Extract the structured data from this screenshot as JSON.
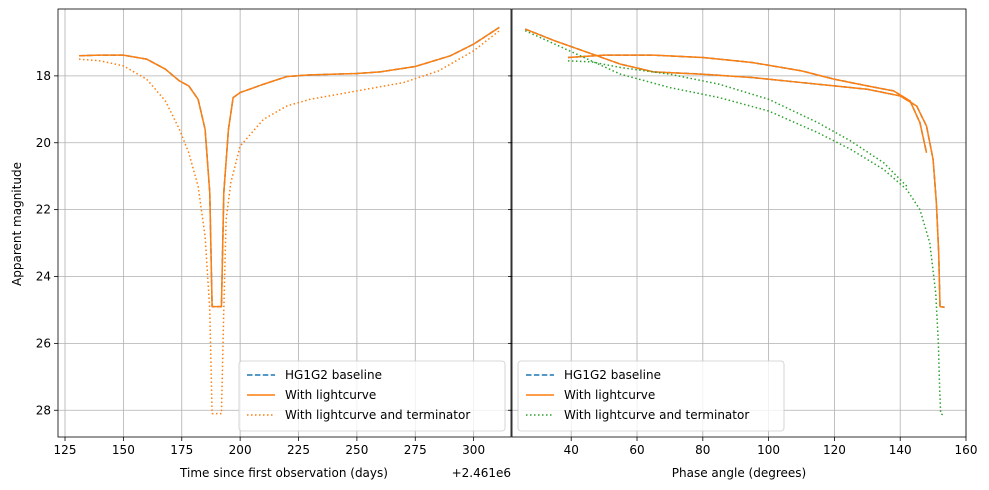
{
  "chart_data": [
    {
      "type": "line",
      "xlabel": "Time since first observation (days)",
      "ylabel": "Apparent magnitude",
      "offset_text": "+2.461e6",
      "xlim": [
        122,
        316
      ],
      "ylim": [
        28.8,
        16.0
      ],
      "x_ticks": [
        125,
        150,
        175,
        200,
        225,
        250,
        275,
        300
      ],
      "y_ticks": [
        18,
        20,
        22,
        24,
        26,
        28
      ],
      "grid": true,
      "legend_position": "lower-right",
      "series": [
        {
          "name": "HG1G2 baseline",
          "color": "#1f77b4",
          "style": "dashed",
          "points": [
            [
              131,
              17.4
            ],
            [
              140,
              17.38
            ],
            [
              150,
              17.38
            ],
            [
              160,
              17.5
            ],
            [
              168,
              17.8
            ],
            [
              174,
              18.15
            ],
            [
              178,
              18.3
            ],
            [
              182,
              18.7
            ],
            [
              185,
              19.6
            ],
            [
              187,
              21.5
            ],
            [
              188,
              24.9
            ],
            [
              192,
              24.9
            ],
            [
              193,
              21.5
            ],
            [
              195,
              19.6
            ],
            [
              197,
              18.65
            ],
            [
              200,
              18.5
            ],
            [
              210,
              18.25
            ],
            [
              220,
              18.02
            ],
            [
              230,
              17.97
            ],
            [
              250,
              17.93
            ],
            [
              260,
              17.88
            ],
            [
              275,
              17.72
            ],
            [
              290,
              17.4
            ],
            [
              300,
              17.05
            ],
            [
              311,
              16.55
            ]
          ]
        },
        {
          "name": "With lightcurve",
          "color": "#ff7f0e",
          "style": "solid",
          "points": [
            [
              131,
              17.4
            ],
            [
              140,
              17.38
            ],
            [
              150,
              17.38
            ],
            [
              160,
              17.5
            ],
            [
              168,
              17.8
            ],
            [
              174,
              18.15
            ],
            [
              178,
              18.3
            ],
            [
              182,
              18.7
            ],
            [
              185,
              19.6
            ],
            [
              187,
              21.5
            ],
            [
              188,
              24.9
            ],
            [
              192,
              24.9
            ],
            [
              193,
              21.5
            ],
            [
              195,
              19.6
            ],
            [
              197,
              18.65
            ],
            [
              200,
              18.5
            ],
            [
              210,
              18.25
            ],
            [
              220,
              18.02
            ],
            [
              230,
              17.97
            ],
            [
              250,
              17.93
            ],
            [
              260,
              17.88
            ],
            [
              275,
              17.72
            ],
            [
              290,
              17.4
            ],
            [
              300,
              17.05
            ],
            [
              311,
              16.55
            ]
          ]
        },
        {
          "name": "With lightcurve and terminator",
          "color": "#ff7f0e",
          "style": "dotted",
          "points": [
            [
              131,
              17.5
            ],
            [
              140,
              17.55
            ],
            [
              150,
              17.7
            ],
            [
              160,
              18.1
            ],
            [
              168,
              18.75
            ],
            [
              174,
              19.6
            ],
            [
              178,
              20.3
            ],
            [
              182,
              21.3
            ],
            [
              185,
              22.8
            ],
            [
              187,
              25.0
            ],
            [
              188,
              28.1
            ],
            [
              192,
              28.1
            ],
            [
              193,
              25.0
            ],
            [
              194,
              22.3
            ],
            [
              196,
              21.2
            ],
            [
              200,
              20.1
            ],
            [
              210,
              19.3
            ],
            [
              220,
              18.9
            ],
            [
              230,
              18.7
            ],
            [
              250,
              18.45
            ],
            [
              270,
              18.2
            ],
            [
              285,
              17.85
            ],
            [
              300,
              17.25
            ],
            [
              311,
              16.65
            ]
          ]
        }
      ]
    },
    {
      "type": "line",
      "xlabel": "Phase angle (degrees)",
      "xlim": [
        22,
        160
      ],
      "ylim": [
        28.8,
        16.0
      ],
      "x_ticks": [
        40,
        60,
        80,
        100,
        120,
        140,
        160
      ],
      "y_ticks": [
        18,
        20,
        22,
        24,
        26,
        28
      ],
      "grid": true,
      "legend_position": "lower-left",
      "series": [
        {
          "name": "HG1G2 baseline",
          "color": "#1f77b4",
          "style": "dashed",
          "paths": [
            [
              [
                26,
                16.6
              ],
              [
                35,
                16.95
              ],
              [
                45,
                17.3
              ],
              [
                55,
                17.65
              ],
              [
                65,
                17.88
              ],
              [
                80,
                17.95
              ],
              [
                95,
                18.05
              ],
              [
                110,
                18.2
              ],
              [
                120,
                18.3
              ],
              [
                130,
                18.4
              ],
              [
                140,
                18.6
              ],
              [
                145,
                18.9
              ],
              [
                148,
                19.5
              ],
              [
                150,
                20.5
              ],
              [
                151,
                21.8
              ],
              [
                151.7,
                23.3
              ],
              [
                152.1,
                24.9
              ],
              [
                153.5,
                24.92
              ]
            ],
            [
              [
                39,
                17.45
              ],
              [
                50,
                17.38
              ],
              [
                65,
                17.38
              ],
              [
                80,
                17.45
              ],
              [
                95,
                17.6
              ],
              [
                110,
                17.85
              ],
              [
                120,
                18.1
              ],
              [
                130,
                18.3
              ],
              [
                138,
                18.45
              ],
              [
                143,
                18.75
              ],
              [
                146,
                19.4
              ],
              [
                148,
                20.3
              ]
            ]
          ]
        },
        {
          "name": "With lightcurve",
          "color": "#ff7f0e",
          "style": "solid",
          "paths": [
            [
              [
                26,
                16.6
              ],
              [
                35,
                16.95
              ],
              [
                45,
                17.3
              ],
              [
                55,
                17.65
              ],
              [
                65,
                17.88
              ],
              [
                80,
                17.95
              ],
              [
                95,
                18.05
              ],
              [
                110,
                18.2
              ],
              [
                120,
                18.3
              ],
              [
                130,
                18.4
              ],
              [
                140,
                18.6
              ],
              [
                145,
                18.9
              ],
              [
                148,
                19.5
              ],
              [
                150,
                20.5
              ],
              [
                151,
                21.8
              ],
              [
                151.7,
                23.3
              ],
              [
                152.1,
                24.9
              ],
              [
                153.5,
                24.92
              ]
            ],
            [
              [
                39,
                17.45
              ],
              [
                50,
                17.38
              ],
              [
                65,
                17.38
              ],
              [
                80,
                17.45
              ],
              [
                95,
                17.6
              ],
              [
                110,
                17.85
              ],
              [
                120,
                18.1
              ],
              [
                130,
                18.3
              ],
              [
                138,
                18.45
              ],
              [
                143,
                18.75
              ],
              [
                146,
                19.4
              ],
              [
                148,
                20.3
              ]
            ]
          ]
        },
        {
          "name": "With lightcurve and terminator",
          "color": "#2ca02c",
          "style": "dotted",
          "paths": [
            [
              [
                26,
                16.65
              ],
              [
                35,
                17.05
              ],
              [
                45,
                17.5
              ],
              [
                55,
                17.95
              ],
              [
                70,
                18.35
              ],
              [
                85,
                18.65
              ],
              [
                100,
                19.05
              ],
              [
                115,
                19.7
              ],
              [
                125,
                20.2
              ],
              [
                135,
                20.8
              ],
              [
                142,
                21.4
              ],
              [
                146,
                22.0
              ],
              [
                149,
                23.0
              ],
              [
                150.8,
                24.5
              ],
              [
                151.6,
                26.0
              ],
              [
                152,
                27.4
              ],
              [
                152.3,
                28.1
              ],
              [
                153.2,
                28.15
              ]
            ],
            [
              [
                39,
                17.55
              ],
              [
                46,
                17.58
              ],
              [
                55,
                17.75
              ],
              [
                70,
                17.95
              ],
              [
                85,
                18.25
              ],
              [
                100,
                18.7
              ],
              [
                115,
                19.4
              ],
              [
                125,
                19.95
              ],
              [
                135,
                20.6
              ],
              [
                142,
                21.3
              ]
            ]
          ]
        }
      ]
    }
  ]
}
